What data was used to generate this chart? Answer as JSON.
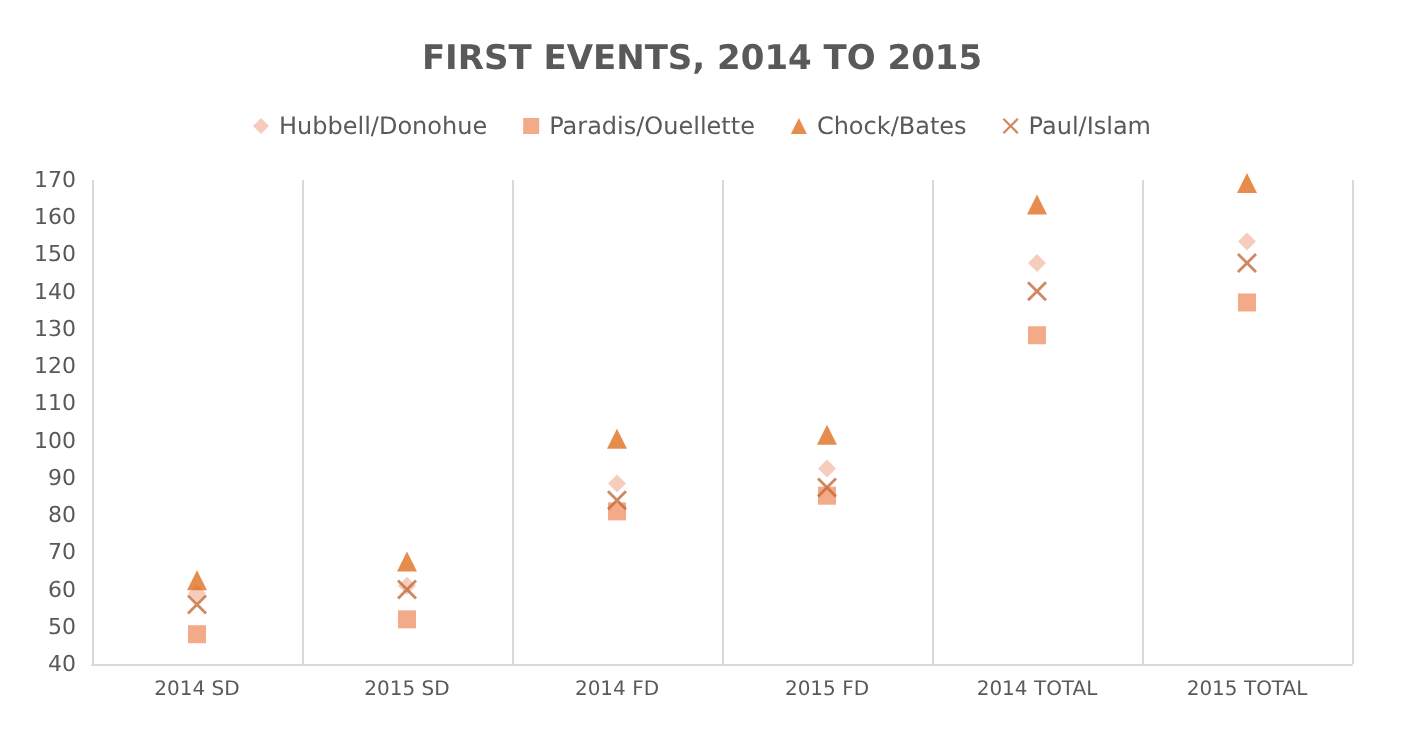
{
  "chart_data": {
    "type": "scatter",
    "title": "FIRST EVENTS, 2014 TO 2015",
    "categories": [
      "2014 SD",
      "2015 SD",
      "2014 FD",
      "2015 FD",
      "2014 TOTAL",
      "2015 TOTAL"
    ],
    "series": [
      {
        "name": "Hubbell/Donohue",
        "color": "#f4c1ad",
        "marker": "diamond",
        "values": [
          59,
          61,
          88.5,
          92.5,
          147.7,
          153.5
        ]
      },
      {
        "name": "Paradis/Ouellette",
        "color": "#f0956b",
        "marker": "square",
        "values": [
          48,
          52,
          81,
          85.2,
          128.3,
          137.1
        ]
      },
      {
        "name": "Chock/Bates",
        "color": "#e07020",
        "marker": "triangle",
        "values": [
          62.5,
          67.5,
          100.5,
          101.6,
          163.4,
          169.2
        ]
      },
      {
        "name": "Paul/Islam",
        "color": "#c46a3a",
        "marker": "cross",
        "values": [
          56,
          60,
          84,
          87.4,
          140.1,
          147.7
        ]
      }
    ],
    "ylim": [
      40,
      170
    ],
    "yticks": [
      40,
      50,
      60,
      70,
      80,
      90,
      100,
      110,
      120,
      130,
      140,
      150,
      160,
      170
    ],
    "grid": "x",
    "legend": "top"
  }
}
